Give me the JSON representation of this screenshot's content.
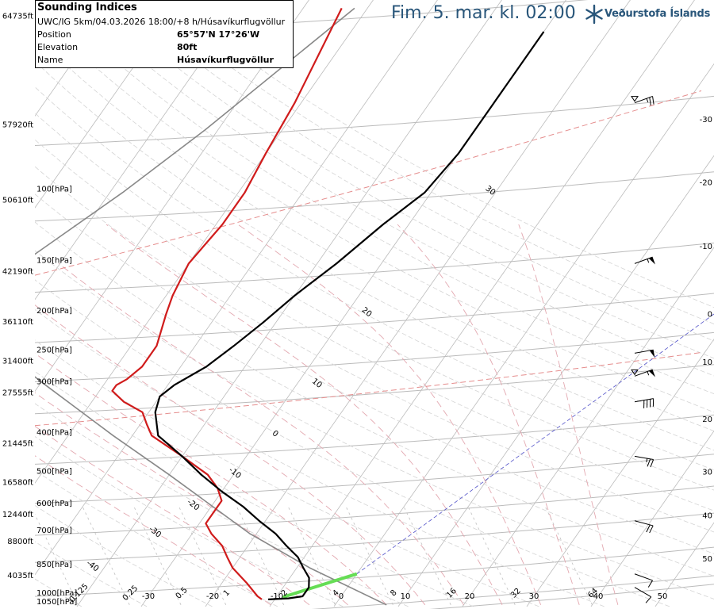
{
  "header": {
    "valid_time": "Fim. 5. mar. kl. 02:00",
    "brand_name": "Veðurstofa Íslands"
  },
  "info": {
    "title": "Sounding Indices",
    "model_run": "UWC/IG 5km/04.03.2026 18:00/+8 h/Húsavíkurflugvöllur",
    "rows": [
      {
        "label": "Position",
        "value": "65°57'N 17°26'W"
      },
      {
        "label": "Elevation",
        "value": "80ft"
      },
      {
        "label": "Name",
        "value": "Húsavíkurflugvöllur"
      }
    ]
  },
  "colors": {
    "temperature": "#d01c1c",
    "dewpoint": "#000000",
    "parcel": "#888888",
    "isobar": "#bbbbbb",
    "isotherm": "#bbbbbb",
    "dry_adiabat": "#d4d4d4",
    "moist_adiabat": "#e3a8b0",
    "mixing_ratio": "#c0c0c0",
    "tropopause_line": "#e58d8d",
    "diagonal_line": "#5050c8",
    "green_segment": "#66dd55",
    "brand": "#29567a"
  },
  "chart_data": {
    "type": "skew-t",
    "pressure_levels": [
      {
        "p": 100,
        "label": "100[hPa]",
        "alt": "50610ft"
      },
      {
        "p": 150,
        "label": "150[hPa]",
        "alt": "42190ft"
      },
      {
        "p": 200,
        "label": "200[hPa]",
        "alt": "36110ft"
      },
      {
        "p": 250,
        "label": "250[hPa]",
        "alt": "31400ft"
      },
      {
        "p": 300,
        "label": "300[hPa]",
        "alt": "27555ft"
      },
      {
        "p": 400,
        "label": "400[hPa]",
        "alt": "21445ft"
      },
      {
        "p": 500,
        "label": "500[hPa]",
        "alt": "16580ft"
      },
      {
        "p": 600,
        "label": "600[hPa]",
        "alt": "12440ft"
      },
      {
        "p": 700,
        "label": "700[hPa]",
        "alt": "8800ft"
      },
      {
        "p": 850,
        "label": "850[hPa]",
        "alt": "4035ft"
      },
      {
        "p": 1000,
        "label": "1000[hPa]",
        "alt": ""
      },
      {
        "p": 1050,
        "label": "1050[hPa]",
        "alt": ""
      }
    ],
    "top_altitudes": [
      {
        "p": 35,
        "alt": "64735ft"
      },
      {
        "p": 65,
        "alt": "57920ft"
      }
    ],
    "right_axis_ticks": [
      {
        "label": "-30",
        "p": 67
      },
      {
        "label": "-20",
        "p": 96
      },
      {
        "label": "-10",
        "p": 138
      },
      {
        "label": "0",
        "p": 203
      },
      {
        "label": "10",
        "p": 267
      },
      {
        "label": "20",
        "p": 370
      },
      {
        "label": "30",
        "p": 500
      },
      {
        "label": "40",
        "p": 640
      },
      {
        "label": "50",
        "p": 820
      }
    ],
    "isotherm_labels": [
      "-30",
      "-20",
      "-10",
      "0",
      "10",
      "20",
      "30",
      "40",
      "50"
    ],
    "mixing_ratio_labels": [
      {
        "t": -40,
        "label": "0.125"
      },
      {
        "t": -32,
        "label": "0.25"
      },
      {
        "t": -24,
        "label": "0.5"
      },
      {
        "t": -17,
        "label": "1"
      },
      {
        "t": -8,
        "label": "2"
      },
      {
        "t": 0,
        "label": "4"
      },
      {
        "t": 9,
        "label": "8"
      },
      {
        "t": 18,
        "label": "16"
      },
      {
        "t": 28,
        "label": "32"
      },
      {
        "t": 40,
        "label": "64"
      }
    ],
    "moist_adiabat_labels": [
      {
        "label": "30",
        "t": -21,
        "p": 100
      },
      {
        "label": "20",
        "t": -27,
        "p": 200
      },
      {
        "label": "10",
        "t": -27,
        "p": 300
      },
      {
        "label": "0",
        "t": -28,
        "p": 400
      },
      {
        "label": "-10",
        "t": -30,
        "p": 500
      },
      {
        "label": "-20",
        "t": -33,
        "p": 600
      },
      {
        "label": "-30",
        "t": -36,
        "p": 700
      },
      {
        "label": "-40",
        "t": -42,
        "p": 850
      }
    ],
    "temperature": [
      {
        "p": 1018,
        "t": -12
      },
      {
        "p": 1000,
        "t": -13
      },
      {
        "p": 930,
        "t": -16
      },
      {
        "p": 850,
        "t": -20
      },
      {
        "p": 800,
        "t": -22
      },
      {
        "p": 750,
        "t": -24
      },
      {
        "p": 700,
        "t": -27
      },
      {
        "p": 660,
        "t": -29
      },
      {
        "p": 620,
        "t": -29
      },
      {
        "p": 580,
        "t": -29
      },
      {
        "p": 540,
        "t": -31
      },
      {
        "p": 500,
        "t": -34
      },
      {
        "p": 450,
        "t": -40
      },
      {
        "p": 400,
        "t": -47
      },
      {
        "p": 375,
        "t": -49
      },
      {
        "p": 350,
        "t": -51
      },
      {
        "p": 330,
        "t": -55
      },
      {
        "p": 310,
        "t": -58
      },
      {
        "p": 300,
        "t": -58
      },
      {
        "p": 290,
        "t": -57
      },
      {
        "p": 270,
        "t": -56
      },
      {
        "p": 240,
        "t": -56
      },
      {
        "p": 200,
        "t": -58
      },
      {
        "p": 180,
        "t": -59
      },
      {
        "p": 150,
        "t": -60
      },
      {
        "p": 120,
        "t": -59
      },
      {
        "p": 100,
        "t": -59
      },
      {
        "p": 80,
        "t": -60
      },
      {
        "p": 60,
        "t": -61
      },
      {
        "p": 35,
        "t": -64
      }
    ],
    "dewpoint": [
      {
        "p": 1018,
        "t": -11
      },
      {
        "p": 1012,
        "t": -8
      },
      {
        "p": 1000,
        "t": -6
      },
      {
        "p": 950,
        "t": -6
      },
      {
        "p": 900,
        "t": -7
      },
      {
        "p": 850,
        "t": -9
      },
      {
        "p": 800,
        "t": -11
      },
      {
        "p": 750,
        "t": -14
      },
      {
        "p": 700,
        "t": -17
      },
      {
        "p": 650,
        "t": -21
      },
      {
        "p": 600,
        "t": -25
      },
      {
        "p": 550,
        "t": -30
      },
      {
        "p": 500,
        "t": -35
      },
      {
        "p": 450,
        "t": -40
      },
      {
        "p": 400,
        "t": -46
      },
      {
        "p": 350,
        "t": -49
      },
      {
        "p": 320,
        "t": -50
      },
      {
        "p": 300,
        "t": -49
      },
      {
        "p": 270,
        "t": -46
      },
      {
        "p": 240,
        "t": -44
      },
      {
        "p": 210,
        "t": -42
      },
      {
        "p": 180,
        "t": -40
      },
      {
        "p": 150,
        "t": -37
      },
      {
        "p": 120,
        "t": -34
      },
      {
        "p": 100,
        "t": -31
      },
      {
        "p": 80,
        "t": -30
      },
      {
        "p": 60,
        "t": -30
      },
      {
        "p": 40,
        "t": -30
      }
    ],
    "parcel": [
      {
        "p": 1050,
        "t": 8
      },
      {
        "p": 850,
        "t": -8
      },
      {
        "p": 700,
        "t": -21
      },
      {
        "p": 500,
        "t": -40
      },
      {
        "p": 400,
        "t": -53
      },
      {
        "p": 300,
        "t": -69
      },
      {
        "p": 200,
        "t": -91
      },
      {
        "p": 190,
        "t": -91
      },
      {
        "p": 150,
        "t": -86
      },
      {
        "p": 100,
        "t": -78
      },
      {
        "p": 70,
        "t": -72
      },
      {
        "p": 35,
        "t": -62
      }
    ],
    "green_segment": [
      {
        "p": 1005,
        "t": -9
      },
      {
        "p": 880,
        "t": 0
      }
    ],
    "diagonal_line": [
      {
        "p": 880,
        "t": 0
      },
      {
        "p": 200,
        "t": 0
      }
    ],
    "tropopause_lines": [
      {
        "p_left": 140,
        "p_right": 60
      },
      {
        "p_left": 330,
        "p_right": 270
      }
    ],
    "wind_barbs": [
      {
        "p": 60,
        "speed": 25,
        "dir": 250,
        "marker": true
      },
      {
        "p": 150,
        "speed": 55,
        "dir": 250,
        "marker": false
      },
      {
        "p": 250,
        "speed": 50,
        "dir": 260,
        "marker": false
      },
      {
        "p": 285,
        "speed": 55,
        "dir": 250,
        "marker": true
      },
      {
        "p": 330,
        "speed": 40,
        "dir": 260,
        "marker": false
      },
      {
        "p": 450,
        "speed": 25,
        "dir": 280,
        "marker": false
      },
      {
        "p": 650,
        "speed": 20,
        "dir": 285,
        "marker": false
      },
      {
        "p": 880,
        "speed": 10,
        "dir": 290,
        "marker": false
      },
      {
        "p": 950,
        "speed": 10,
        "dir": 300,
        "marker": false
      }
    ]
  }
}
